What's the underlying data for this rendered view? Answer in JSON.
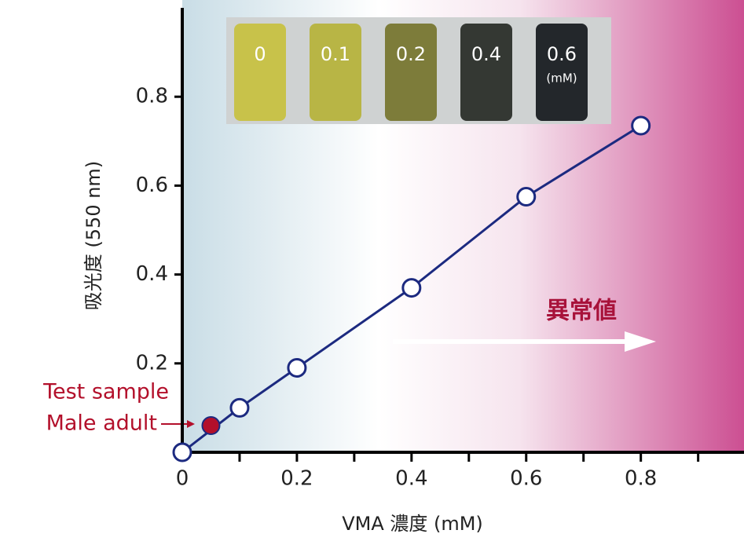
{
  "chart_data": {
    "type": "line",
    "x_label": "VMA 濃度 (mM)",
    "y_label": "吸光度 (550 nm)",
    "xlim": [
      0,
      0.98
    ],
    "ylim": [
      0,
      1.0
    ],
    "xticks": [
      0,
      0.2,
      0.4,
      0.6,
      0.8
    ],
    "xminorticks": [
      0.1,
      0.3,
      0.5,
      0.7,
      0.9
    ],
    "yticks": [
      0.2,
      0.4,
      0.6,
      0.8
    ],
    "x": [
      0,
      0.1,
      0.2,
      0.4,
      0.6,
      0.8
    ],
    "series": [
      {
        "color": "#1c2a80",
        "values": [
          0.0,
          0.1,
          0.19,
          0.37,
          0.575,
          0.735
        ]
      }
    ],
    "highlight": {
      "x": 0.05,
      "y": 0.06,
      "color": "#b3102b",
      "labels": [
        "Test sample",
        "Male adult"
      ]
    },
    "arrow_label": "異常値",
    "vials": {
      "labels": [
        "0",
        "0.1",
        "0.2",
        "0.4",
        "0.6"
      ],
      "unit": "(mM)"
    }
  }
}
